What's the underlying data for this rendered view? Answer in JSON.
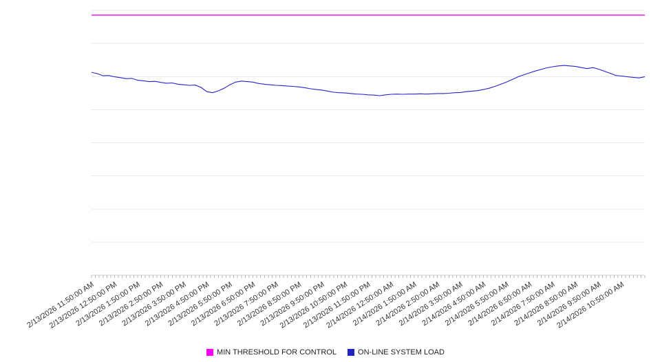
{
  "chart_data": {
    "type": "line",
    "title": "",
    "xlabel": "",
    "ylabel": "",
    "ylim": [
      0,
      100
    ],
    "grid": "horizontal",
    "grid_step": 12.5,
    "y_tick_labels_visible": false,
    "legend_position": "bottom-center",
    "x_tick_interval": "1 hour",
    "x_minor_tick_interval": "10 min",
    "x_tick_labels": [
      "2/13/2026 11:50:00 AM",
      "2/13/2026 12:50:00 PM",
      "2/13/2026 1:50:00 PM",
      "2/13/2026 2:50:00 PM",
      "2/13/2026 3:50:00 PM",
      "2/13/2026 4:50:00 PM",
      "2/13/2026 5:50:00 PM",
      "2/13/2026 6:50:00 PM",
      "2/13/2026 7:50:00 PM",
      "2/13/2026 8:50:00 PM",
      "2/13/2026 9:50:00 PM",
      "2/13/2026 10:50:00 PM",
      "2/13/2026 11:50:00 PM",
      "2/14/2026 12:50:00 AM",
      "2/14/2026 1:50:00 AM",
      "2/14/2026 2:50:00 AM",
      "2/14/2026 3:50:00 AM",
      "2/14/2026 4:50:00 AM",
      "2/14/2026 5:50:00 AM",
      "2/14/2026 6:50:00 AM",
      "2/14/2026 7:50:00 AM",
      "2/14/2026 8:50:00 AM",
      "2/14/2026 9:50:00 AM",
      "2/14/2026 10:50:00 AM"
    ],
    "series": [
      {
        "name": "MIN THRESHOLD FOR CONTROL",
        "color": "#ff00ff",
        "type": "constant",
        "value": 98.2
      },
      {
        "name": "ON-LINE SYSTEM LOAD",
        "color": "#2222cc",
        "type": "line",
        "sample_interval_minutes": 15,
        "start": "2/13/2026 11:50:00 AM",
        "values": [
          76.6,
          76.1,
          75.3,
          75.4,
          74.9,
          74.6,
          74.2,
          74.3,
          73.6,
          73.4,
          73.1,
          73.2,
          72.8,
          72.5,
          72.6,
          72.1,
          71.9,
          71.7,
          71.8,
          70.9,
          69.3,
          68.9,
          69.6,
          70.6,
          71.9,
          72.9,
          73.3,
          73.1,
          72.9,
          72.4,
          72.1,
          71.9,
          71.7,
          71.6,
          71.4,
          71.3,
          71.1,
          70.8,
          70.4,
          70.1,
          69.9,
          69.5,
          69.1,
          68.9,
          68.8,
          68.6,
          68.4,
          68.3,
          68.1,
          68.0,
          67.8,
          68.1,
          68.3,
          68.4,
          68.3,
          68.4,
          68.4,
          68.5,
          68.4,
          68.5,
          68.6,
          68.6,
          68.7,
          68.9,
          69.0,
          69.3,
          69.5,
          69.7,
          70.1,
          70.6,
          71.3,
          72.1,
          72.9,
          73.9,
          74.9,
          75.7,
          76.4,
          77.1,
          77.7,
          78.3,
          78.7,
          79.0,
          79.2,
          79.0,
          78.8,
          78.4,
          78.0,
          78.4,
          77.8,
          77.0,
          76.2,
          75.4,
          75.2,
          74.9,
          74.7,
          74.5,
          74.9
        ]
      }
    ]
  }
}
